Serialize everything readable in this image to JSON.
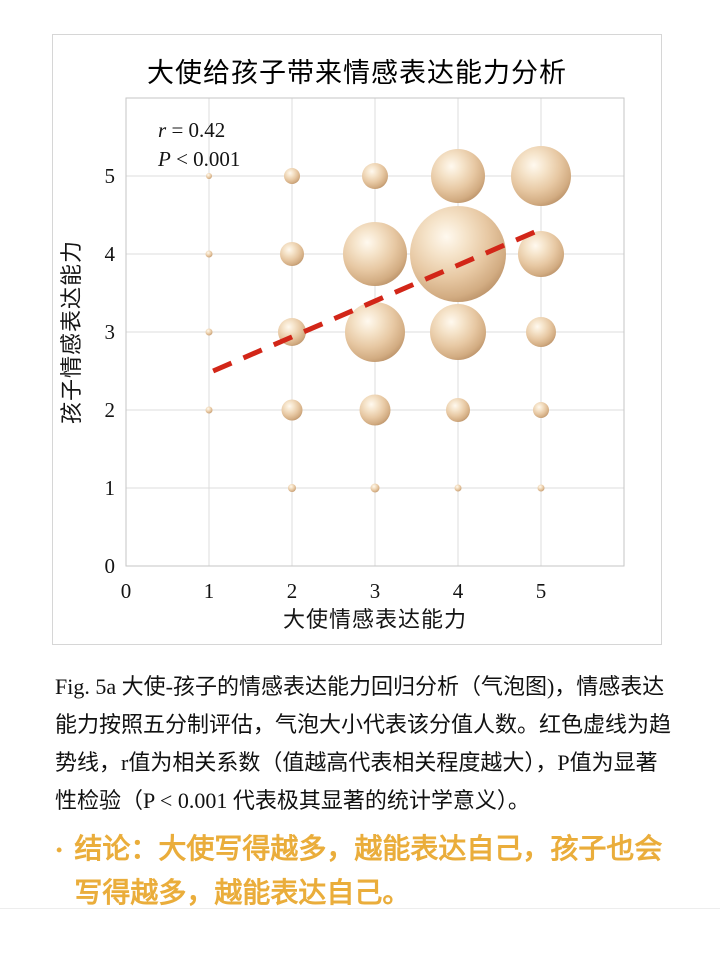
{
  "figure": {
    "panel_border_color": "#D6D6D6"
  },
  "chart_data": {
    "type": "bubble",
    "title": "大使给孩子带来情感表达能力分析",
    "xlabel": "大使情感表达能力",
    "ylabel": "孩子情感表达能力",
    "xlim": [
      0,
      6
    ],
    "ylim": [
      0,
      6
    ],
    "xticks": [
      "0",
      "1",
      "2",
      "3",
      "4",
      "5"
    ],
    "yticks": [
      "0",
      "1",
      "2",
      "3",
      "4",
      "5"
    ],
    "grid": true,
    "legend": false,
    "annotation": {
      "var1": "r",
      "rest1": " = 0.42",
      "var2": "P",
      "rest2": " < 0.001"
    },
    "size_meaning": "气泡大小代表该分值人数",
    "bubbles": [
      {
        "x": 1,
        "y": 2,
        "r": 3.5
      },
      {
        "x": 1,
        "y": 3,
        "r": 3.5
      },
      {
        "x": 1,
        "y": 4,
        "r": 3.5
      },
      {
        "x": 1,
        "y": 5,
        "r": 3
      },
      {
        "x": 2,
        "y": 1,
        "r": 4
      },
      {
        "x": 2,
        "y": 2,
        "r": 10.5
      },
      {
        "x": 2,
        "y": 3,
        "r": 14
      },
      {
        "x": 2,
        "y": 4,
        "r": 12
      },
      {
        "x": 2,
        "y": 5,
        "r": 8
      },
      {
        "x": 3,
        "y": 1,
        "r": 4.5
      },
      {
        "x": 3,
        "y": 2,
        "r": 15.5
      },
      {
        "x": 3,
        "y": 3,
        "r": 30
      },
      {
        "x": 3,
        "y": 4,
        "r": 32
      },
      {
        "x": 3,
        "y": 5,
        "r": 13
      },
      {
        "x": 4,
        "y": 1,
        "r": 3.5
      },
      {
        "x": 4,
        "y": 2,
        "r": 12
      },
      {
        "x": 4,
        "y": 3,
        "r": 28
      },
      {
        "x": 4,
        "y": 4,
        "r": 48
      },
      {
        "x": 4,
        "y": 5,
        "r": 27
      },
      {
        "x": 5,
        "y": 1,
        "r": 3.5
      },
      {
        "x": 5,
        "y": 2,
        "r": 8
      },
      {
        "x": 5,
        "y": 3,
        "r": 15
      },
      {
        "x": 5,
        "y": 4,
        "r": 23
      },
      {
        "x": 5,
        "y": 5,
        "r": 30
      }
    ],
    "trendline": {
      "x1": 1.05,
      "y1": 2.5,
      "x2": 4.92,
      "y2": 4.28,
      "style": "dashed",
      "color": "#D22618"
    },
    "colors": {
      "bubble_highlight": "#FFF7EA",
      "bubble_mid": "#EBCBA6",
      "bubble_edge": "#BC9166",
      "grid": "#DCDCDC",
      "plot_border": "#C6C6C6",
      "text": "#141414",
      "trend": "#D22618"
    }
  },
  "caption": {
    "lines": [
      "Fig. 5a 大使-孩子的情感表达能力回归分析（气泡图)，情感表达",
      "能力按照五分制评估，气泡大小代表该分值人数。红色虚线为趋",
      "势线，r值为相关系数（值越高代表相关程度越大），P值为显著",
      "性检验（P < 0.001 代表极其显著的统计学意义）。"
    ]
  },
  "conclusion": {
    "bullet": "•",
    "lines": [
      "结论：大使写得越多，越能表达自己，孩子也会",
      "写得越多，越能表达自己。"
    ],
    "color": "#EAAD3B"
  }
}
